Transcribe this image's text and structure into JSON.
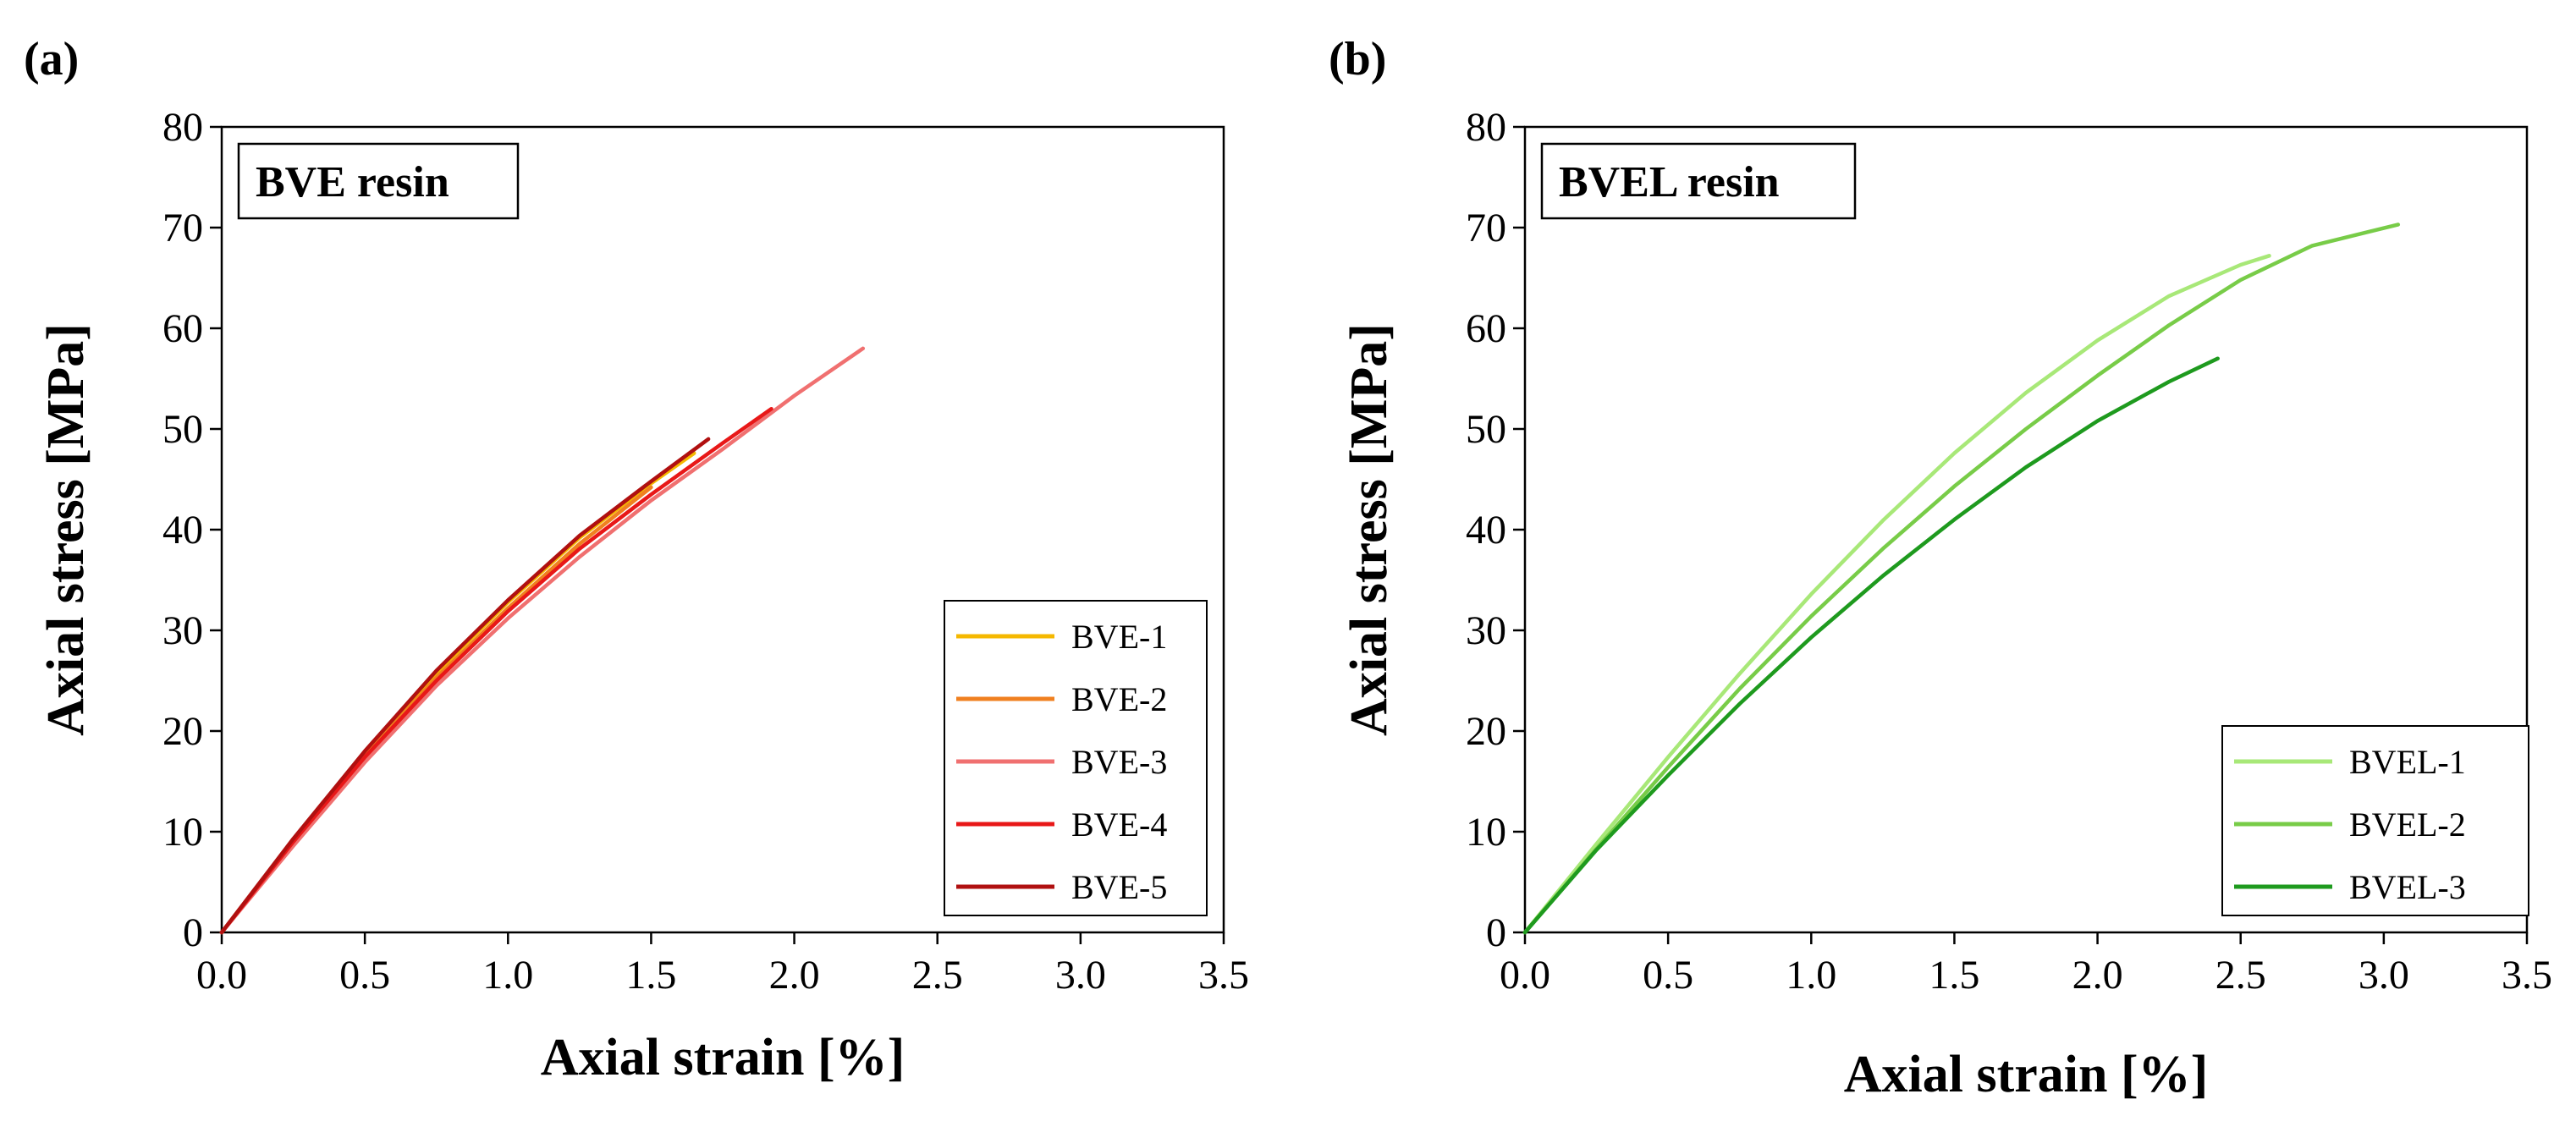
{
  "chart_data": [
    {
      "type": "line",
      "panel_label": "(a)",
      "title": "BVE resin",
      "xlabel": "Axial strain [%]",
      "ylabel": "Axial stress [MPa]",
      "xlim": [
        0,
        3.5
      ],
      "ylim": [
        0,
        80
      ],
      "xticks": [
        "0.0",
        "0.5",
        "1.0",
        "1.5",
        "2.0",
        "2.5",
        "3.0",
        "3.5"
      ],
      "yticks": [
        "0",
        "10",
        "20",
        "30",
        "40",
        "50",
        "60",
        "70",
        "80"
      ],
      "legend_position": "bottom-right",
      "series": [
        {
          "name": "BVE-1",
          "color": "#F5B800",
          "x": [
            0,
            0.25,
            0.5,
            0.75,
            1.0,
            1.25,
            1.5,
            1.65
          ],
          "y": [
            0,
            9.2,
            17.8,
            25.8,
            32.8,
            39.2,
            44.6,
            47.6
          ]
        },
        {
          "name": "BVE-2",
          "color": "#F08020",
          "x": [
            0,
            0.25,
            0.5,
            0.75,
            1.0,
            1.25,
            1.5
          ],
          "y": [
            0,
            9.0,
            17.5,
            25.3,
            32.2,
            38.6,
            44.2
          ]
        },
        {
          "name": "BVE-3",
          "color": "#F07070",
          "x": [
            0,
            0.25,
            0.5,
            0.75,
            1.0,
            1.25,
            1.5,
            1.75,
            2.0,
            2.24
          ],
          "y": [
            0,
            8.6,
            16.9,
            24.5,
            31.2,
            37.3,
            42.9,
            48.0,
            53.3,
            58.0
          ]
        },
        {
          "name": "BVE-4",
          "color": "#E81818",
          "x": [
            0,
            0.25,
            0.5,
            0.75,
            1.0,
            1.25,
            1.5,
            1.75,
            1.92
          ],
          "y": [
            0,
            9.0,
            17.4,
            25.0,
            31.9,
            38.1,
            43.5,
            48.6,
            52.0
          ]
        },
        {
          "name": "BVE-5",
          "color": "#B01010",
          "x": [
            0,
            0.25,
            0.5,
            0.75,
            1.0,
            1.25,
            1.5,
            1.7
          ],
          "y": [
            0,
            9.3,
            18.0,
            26.0,
            33.0,
            39.4,
            44.8,
            49.0
          ]
        }
      ]
    },
    {
      "type": "line",
      "panel_label": "(b)",
      "title": "BVEL resin",
      "xlabel": "Axial strain [%]",
      "ylabel": "Axial stress [MPa]",
      "xlim": [
        0,
        3.5
      ],
      "ylim": [
        0,
        80
      ],
      "xticks": [
        "0.0",
        "0.5",
        "1.0",
        "1.5",
        "2.0",
        "2.5",
        "3.0",
        "3.5"
      ],
      "yticks": [
        "0",
        "10",
        "20",
        "30",
        "40",
        "50",
        "60",
        "70",
        "80"
      ],
      "legend_position": "bottom-right",
      "series": [
        {
          "name": "BVEL-1",
          "color": "#A8E878",
          "x": [
            0,
            0.25,
            0.5,
            0.75,
            1.0,
            1.25,
            1.5,
            1.75,
            2.0,
            2.25,
            2.5,
            2.6
          ],
          "y": [
            0,
            8.8,
            17.4,
            25.7,
            33.6,
            40.9,
            47.6,
            53.6,
            58.8,
            63.2,
            66.3,
            67.2
          ]
        },
        {
          "name": "BVEL-2",
          "color": "#78CC48",
          "x": [
            0,
            0.25,
            0.5,
            0.75,
            1.0,
            1.25,
            1.5,
            1.75,
            2.0,
            2.25,
            2.5,
            2.75,
            3.05
          ],
          "y": [
            0,
            8.3,
            16.4,
            24.2,
            31.4,
            38.1,
            44.3,
            50.0,
            55.3,
            60.3,
            64.8,
            68.2,
            70.3
          ]
        },
        {
          "name": "BVEL-3",
          "color": "#1E9A1E",
          "x": [
            0,
            0.25,
            0.5,
            0.75,
            1.0,
            1.25,
            1.5,
            1.75,
            2.0,
            2.25,
            2.42
          ],
          "y": [
            0,
            8.2,
            15.6,
            22.7,
            29.3,
            35.4,
            41.0,
            46.2,
            50.8,
            54.7,
            57.0
          ]
        }
      ]
    }
  ]
}
